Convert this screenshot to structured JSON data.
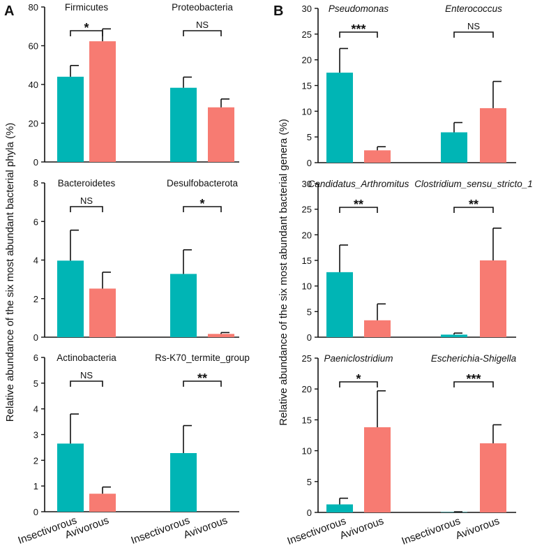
{
  "colors": {
    "insectivorous": "#00b5b5",
    "avivorous": "#f77b72",
    "axis": "#111111"
  },
  "chart_data": {
    "type": "bar",
    "categories": [
      "Insectivorous",
      "Avivorous"
    ],
    "panels": [
      {
        "label": "A",
        "ylabel": "Relative abundance of the six most abundant bacterial phyla (%)",
        "rows": [
          {
            "ylim": [
              0,
              80
            ],
            "ticks": [
              "0",
              "20",
              "40",
              "60",
              "80"
            ],
            "groups": [
              {
                "title": "Firmicutes",
                "italic": false,
                "values": [
                  44,
                  62.3
                ],
                "errors": [
                  5.8,
                  6.4
                ],
                "sig": "*"
              },
              {
                "title": "Proteobacteria",
                "italic": false,
                "values": [
                  38.3,
                  28.2
                ],
                "errors": [
                  5.5,
                  4.3
                ],
                "sig": "NS"
              }
            ]
          },
          {
            "ylim": [
              0,
              8
            ],
            "ticks": [
              "0",
              "2",
              "4",
              "6",
              "8"
            ],
            "groups": [
              {
                "title": "Bacteroidetes",
                "italic": false,
                "values": [
                  3.97,
                  2.52
                ],
                "errors": [
                  1.58,
                  0.85
                ],
                "sig": "NS"
              },
              {
                "title": "Desulfobacterota",
                "italic": false,
                "values": [
                  3.28,
                  0.17
                ],
                "errors": [
                  1.25,
                  0.07
                ],
                "sig": "*"
              }
            ]
          },
          {
            "ylim": [
              0,
              6
            ],
            "ticks": [
              "0",
              "1",
              "2",
              "3",
              "4",
              "5",
              "6"
            ],
            "groups": [
              {
                "title": "Actinobacteria",
                "italic": false,
                "values": [
                  2.65,
                  0.7
                ],
                "errors": [
                  1.15,
                  0.26
                ],
                "sig": "NS"
              },
              {
                "title": "Rs-K70_termite_group",
                "italic": false,
                "values": [
                  2.28,
                  0
                ],
                "errors": [
                  1.07,
                  0
                ],
                "sig": "**"
              }
            ]
          }
        ]
      },
      {
        "label": "B",
        "ylabel": "Relative abundance of the six most abundant bacterial genera (%)",
        "rows": [
          {
            "ylim": [
              0,
              30
            ],
            "ticks": [
              "0",
              "5",
              "10",
              "15",
              "20",
              "25",
              "30"
            ],
            "groups": [
              {
                "title": "Pseudomonas",
                "italic": true,
                "values": [
                  17.5,
                  2.4
                ],
                "errors": [
                  4.7,
                  0.7
                ],
                "sig": "***"
              },
              {
                "title": "Enterococcus",
                "italic": true,
                "values": [
                  5.9,
                  10.6
                ],
                "errors": [
                  1.9,
                  5.2
                ],
                "sig": "NS"
              }
            ]
          },
          {
            "ylim": [
              0,
              30
            ],
            "ticks": [
              "0",
              "5",
              "10",
              "15",
              "20",
              "25",
              "30"
            ],
            "groups": [
              {
                "title": "Candidatus_Arthromitus",
                "italic": true,
                "values": [
                  12.7,
                  3.3
                ],
                "errors": [
                  5.3,
                  3.2
                ],
                "sig": "**"
              },
              {
                "title": "Clostridium_sensu_stricto_1",
                "italic": true,
                "values": [
                  0.5,
                  15
                ],
                "errors": [
                  0.3,
                  6.3
                ],
                "sig": "**"
              }
            ]
          },
          {
            "ylim": [
              0,
              25
            ],
            "ticks": [
              "0",
              "5",
              "10",
              "15",
              "20",
              "25"
            ],
            "groups": [
              {
                "title": "Paeniclostridium",
                "italic": true,
                "values": [
                  1.3,
                  13.8
                ],
                "errors": [
                  1.0,
                  5.9
                ],
                "sig": "*"
              },
              {
                "title": "Escherichia-Shigella",
                "italic": true,
                "values": [
                  0.05,
                  11.2
                ],
                "errors": [
                  0.05,
                  3.0
                ],
                "sig": "***"
              }
            ]
          }
        ]
      }
    ]
  }
}
